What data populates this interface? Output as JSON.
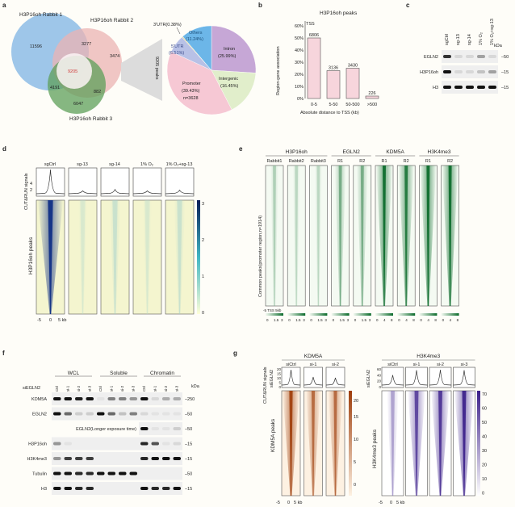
{
  "panel_labels": {
    "a": "a",
    "b": "b",
    "c": "c",
    "d": "d",
    "e": "e",
    "f": "f",
    "g": "g"
  },
  "panel_a": {
    "venn": {
      "labels": [
        "H3P16oh Rabbit 1",
        "H3P16oh Rabbit 2",
        "H3P16oh Rabbit 3"
      ],
      "counts": {
        "r1_only": "11596",
        "r1_r2": "3277",
        "r2_only": "3474",
        "all": "9205",
        "r1_r3": "4191",
        "r2_r3": "882",
        "r3_only": "6047"
      },
      "colors": [
        "#8dbce6",
        "#ebb3b3",
        "#5e9f5a"
      ]
    },
    "peaks_label": "9205 peaks",
    "pie": {
      "slices": [
        {
          "name": "Intron",
          "pct": 25.99,
          "label": "Intron",
          "value": "(25.99%)",
          "color": "#c6a7d6"
        },
        {
          "name": "Intergenic",
          "pct": 16.45,
          "label": "Intergenic",
          "value": "(16.45%)",
          "color": "#e1eecb"
        },
        {
          "name": "Promoter",
          "pct": 39.43,
          "label": "Promoter",
          "value": "(39.43%)",
          "extra": "n=3628",
          "color": "#f6c8d4"
        },
        {
          "name": "5'UTR",
          "pct": 6.51,
          "label": "5'UTR",
          "value": "(6.51%)",
          "color": "#b8c1e6"
        },
        {
          "name": "3'UTR",
          "pct": 0.38,
          "label": "3'UTR(0.38%)",
          "color": "#e6d79c"
        },
        {
          "name": "Others",
          "pct": 11.24,
          "label": "Others",
          "value": "(11.24%)",
          "color": "#6cb6e8"
        }
      ]
    }
  },
  "chart_data": {
    "type": "bar",
    "title": "H3P16oh peaks",
    "annotation": "TSS",
    "categories": [
      "0-5",
      "5-50",
      "50-500",
      ">500"
    ],
    "values": [
      50,
      23,
      25,
      2
    ],
    "data_labels": [
      "6806",
      "3136",
      "3430",
      "226"
    ],
    "xlabel": "Absolute distance to TSS (kb)",
    "ylabel": "Region-gene association",
    "yticks": [
      "0%",
      "10%",
      "20%",
      "30%",
      "40%",
      "50%",
      "60%"
    ],
    "ylim": [
      0,
      60
    ],
    "bar_color": "#f7d5dc"
  },
  "panel_c": {
    "lanes": [
      "sgCtrl",
      "sg-13",
      "sg-14",
      "1% O₂",
      "1% O₂+sg-13"
    ],
    "kda_label": "kDa",
    "rows": [
      {
        "label": "EGLN2",
        "marker": "–50",
        "bands": [
          0.85,
          0.1,
          0.1,
          0.35,
          0.1
        ]
      },
      {
        "label": "H3P16oh",
        "marker": "–15",
        "bands": [
          1,
          0.1,
          0.1,
          0.2,
          0.35
        ]
      },
      {
        "label": "H3",
        "marker": "–15",
        "bands": [
          1,
          1,
          1,
          1,
          1
        ]
      }
    ]
  },
  "panel_d": {
    "columns": [
      "sgCtrl",
      "sg-13",
      "sg-14",
      "1% O₂",
      "1% O₂+sg-13"
    ],
    "profile_ylabel": "CUT&RUN signals",
    "profile_yticks": [
      "4",
      "2"
    ],
    "heatmap_ylabel": "H3P16oh peaks",
    "colorbar_ticks": [
      "3",
      "2",
      "1",
      "0"
    ],
    "xticks": [
      "-5",
      "0",
      "5 kb"
    ],
    "intensity": [
      1,
      0.35,
      0.45,
      0.35,
      0.45
    ],
    "peak_height": [
      1,
      0.12,
      0.18,
      0.12,
      0.15
    ],
    "colors": {
      "low": "#f4f5cf",
      "mid": "#41a6c4",
      "high": "#0c2c84"
    }
  },
  "panel_e": {
    "groups": [
      "H3P16oh",
      "EGLN2",
      "KDM5A",
      "H3K4me3"
    ],
    "columns": [
      "Rabbit1",
      "Rabbit2",
      "Rabbit3",
      "R1",
      "R2",
      "R1",
      "R2",
      "R1",
      "R2"
    ],
    "ylabel": "Common peaks(promoter region,n=1914)",
    "xticks": "-5  TSS  5kb",
    "colorbar_ticks": [
      [
        "0",
        "1.5",
        "3"
      ],
      [
        "0",
        "1.5",
        "3"
      ],
      [
        "0",
        "1.5",
        "3"
      ],
      [
        "0",
        "1.5",
        "3"
      ],
      [
        "0",
        "1.5",
        "3"
      ],
      [
        "0",
        "4",
        "8"
      ],
      [
        "0",
        "4",
        "8"
      ],
      [
        "0",
        "4",
        "8"
      ],
      [
        "0",
        "4",
        "8"
      ]
    ],
    "intensity": [
      0.5,
      0.45,
      0.45,
      0.7,
      0.7,
      1,
      0.95,
      1,
      1
    ],
    "colors": {
      "low": "#f4faf2",
      "high": "#0a6a2a"
    }
  },
  "panel_f": {
    "groups": [
      "WCL",
      "Soluble",
      "Chromatin"
    ],
    "row_header": "siEGLN2",
    "lanes": [
      "Ctrl",
      "si-1",
      "si-2",
      "si-3",
      "Ctrl",
      "si-1",
      "si-2",
      "si-3",
      "Ctrl",
      "si-1",
      "si-2",
      "si-3"
    ],
    "kda_label": "kDa",
    "rows": [
      {
        "label": "KDM5A",
        "marker": "–250",
        "bands": [
          1,
          1,
          0.95,
          1,
          0.05,
          0.5,
          0.5,
          0.4,
          1,
          0.1,
          0.3,
          0.3
        ]
      },
      {
        "label": "EGLN2",
        "marker": "–50",
        "bands": [
          1,
          0.6,
          0.15,
          0.15,
          1,
          0.6,
          0.2,
          0.5,
          0.1,
          0.05,
          0.05,
          0.05
        ]
      },
      {
        "label": "EGLN2(Longer exposure time)",
        "marker": "–50",
        "bands": [
          0,
          0,
          0,
          0,
          0,
          0,
          0,
          0,
          1,
          0.05,
          0.05,
          0.15
        ]
      },
      {
        "label": "H3P16oh",
        "marker": "–15",
        "bands": [
          0.4,
          0.05,
          0,
          0,
          0,
          0,
          0,
          0,
          0.9,
          0.7,
          0.05,
          0.1
        ]
      },
      {
        "label": "H3K4me3",
        "marker": "–15",
        "bands": [
          0.4,
          0.8,
          0.8,
          0.8,
          0,
          0,
          0,
          0,
          0.9,
          1,
          1,
          1
        ]
      },
      {
        "label": "Tubulin",
        "marker": "–50",
        "bands": [
          1,
          1,
          0.9,
          0.9,
          1,
          1,
          1,
          1,
          0,
          0,
          0,
          0
        ]
      },
      {
        "label": "H3",
        "marker": "–15",
        "bands": [
          1,
          1,
          0.9,
          0.9,
          0,
          0,
          0,
          0,
          1,
          0.9,
          0.9,
          1
        ]
      }
    ]
  },
  "panel_g": {
    "profile_ylabel": "CUT&RUN signals",
    "row_header": "siEGLN2",
    "xticks": [
      "-5",
      "0",
      "5 kb"
    ],
    "kdm5a": {
      "title": "KDM5A",
      "columns": [
        "siCtrl",
        "si-1",
        "si-2"
      ],
      "profile_yticks": [
        "20",
        "15",
        "10",
        "5",
        "0"
      ],
      "peak_fraction": [
        0.95,
        0.5,
        0.45
      ],
      "heatmap_ylabel": "KDM5A peaks",
      "colorbar_ticks": [
        "20",
        "15",
        "10",
        "5",
        "0"
      ],
      "intensity": [
        1,
        0.85,
        0.85
      ],
      "colors": {
        "low": "#fdf1e2",
        "high": "#9e3d0a"
      }
    },
    "h3k4me3": {
      "title": "H3K4me3",
      "columns": [
        "siCtrl",
        "si-1",
        "si-2",
        "si-3"
      ],
      "profile_yticks": [
        "60",
        "40",
        "20",
        "0"
      ],
      "peak_fraction": [
        0.62,
        0.92,
        0.95,
        0.92
      ],
      "heatmap_ylabel": "H3K4me3 peaks",
      "colorbar_ticks": [
        "70",
        "60",
        "50",
        "40",
        "30",
        "20",
        "10",
        "0"
      ],
      "intensity": [
        0.6,
        0.9,
        0.95,
        1
      ],
      "colors": {
        "low": "#ffffff",
        "high": "#3b1f8a"
      }
    }
  }
}
